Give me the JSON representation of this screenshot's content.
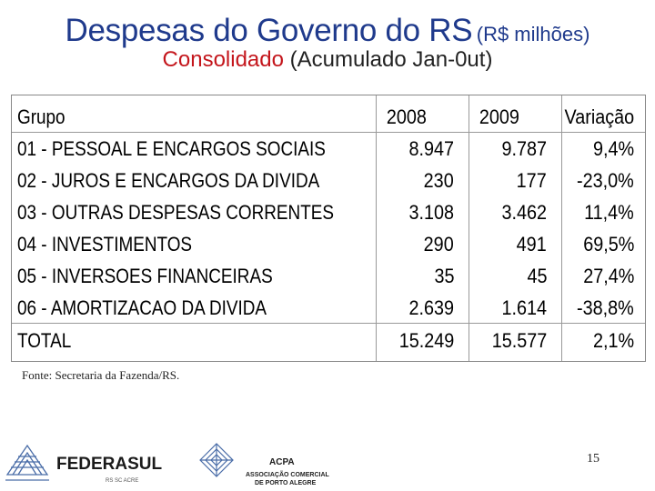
{
  "title": {
    "main": "Despesas do Governo do RS",
    "unit": "(R$ milhões)"
  },
  "subtitle": {
    "red": "Consolidado",
    "dark": "(Acumulado Jan-0ut)"
  },
  "table": {
    "headers": [
      "Grupo",
      "2008",
      "2009",
      "Variação"
    ],
    "rows": [
      [
        "01 - PESSOAL E ENCARGOS SOCIAIS",
        "8.947",
        "9.787",
        "9,4%"
      ],
      [
        "02 - JUROS E ENCARGOS DA DIVIDA",
        "230",
        "177",
        "-23,0%"
      ],
      [
        "03 - OUTRAS DESPESAS CORRENTES",
        "3.108",
        "3.462",
        "11,4%"
      ],
      [
        "04 - INVESTIMENTOS",
        "290",
        "491",
        "69,5%"
      ],
      [
        "05 - INVERSOES FINANCEIRAS",
        "35",
        "45",
        "27,4%"
      ],
      [
        "06 - AMORTIZACAO DA DIVIDA",
        "2.639",
        "1.614",
        "-38,8%"
      ],
      [
        "TOTAL",
        "15.249",
        "15.577",
        "2,1%"
      ]
    ]
  },
  "source": "Fonte: Secretaria da Fazenda/RS.",
  "logos": {
    "federasul": {
      "name": "FEDERASUL",
      "tagline": "RS  SC  ACRE"
    },
    "acpa": {
      "name": "ACPA",
      "line1": "ASSOCIAÇÃO COMERCIAL",
      "line2": "DE PORTO ALEGRE"
    }
  },
  "page_number": "15",
  "colors": {
    "title": "#1f3a8c",
    "subtitle_highlight": "#c4161c",
    "logo_blue": "#4a6da8"
  }
}
